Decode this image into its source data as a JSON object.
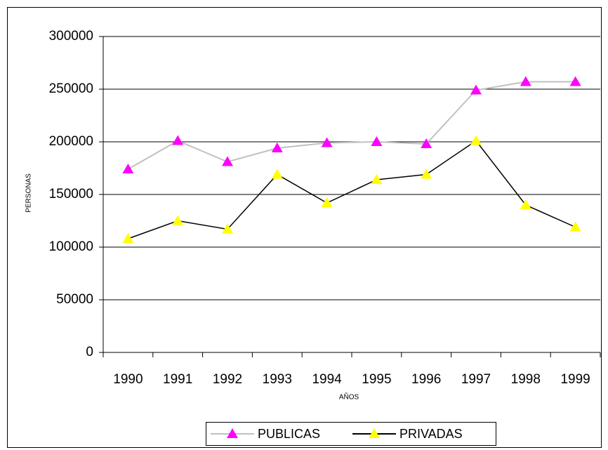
{
  "chart_data": {
    "type": "line",
    "categories": [
      "1990",
      "1991",
      "1992",
      "1993",
      "1994",
      "1995",
      "1996",
      "1997",
      "1998",
      "1999"
    ],
    "series": [
      {
        "name": "PUBLICAS",
        "color": "#c0c0c0",
        "marker_color": "#ff00ff",
        "values": [
          174000,
          201000,
          181000,
          194000,
          199000,
          200000,
          198000,
          249000,
          257000,
          257000
        ]
      },
      {
        "name": "PRIVADAS",
        "color": "#000000",
        "marker_color": "#ffff00",
        "values": [
          108000,
          125000,
          117000,
          169000,
          142000,
          164000,
          169000,
          201000,
          140000,
          119000
        ]
      }
    ],
    "ylim": [
      0,
      300000
    ],
    "yticks": [
      0,
      50000,
      100000,
      150000,
      200000,
      250000,
      300000
    ],
    "ylabel": "PERSONAS",
    "xlabel": "AÑOS",
    "grid": true,
    "legend": "bottom"
  }
}
